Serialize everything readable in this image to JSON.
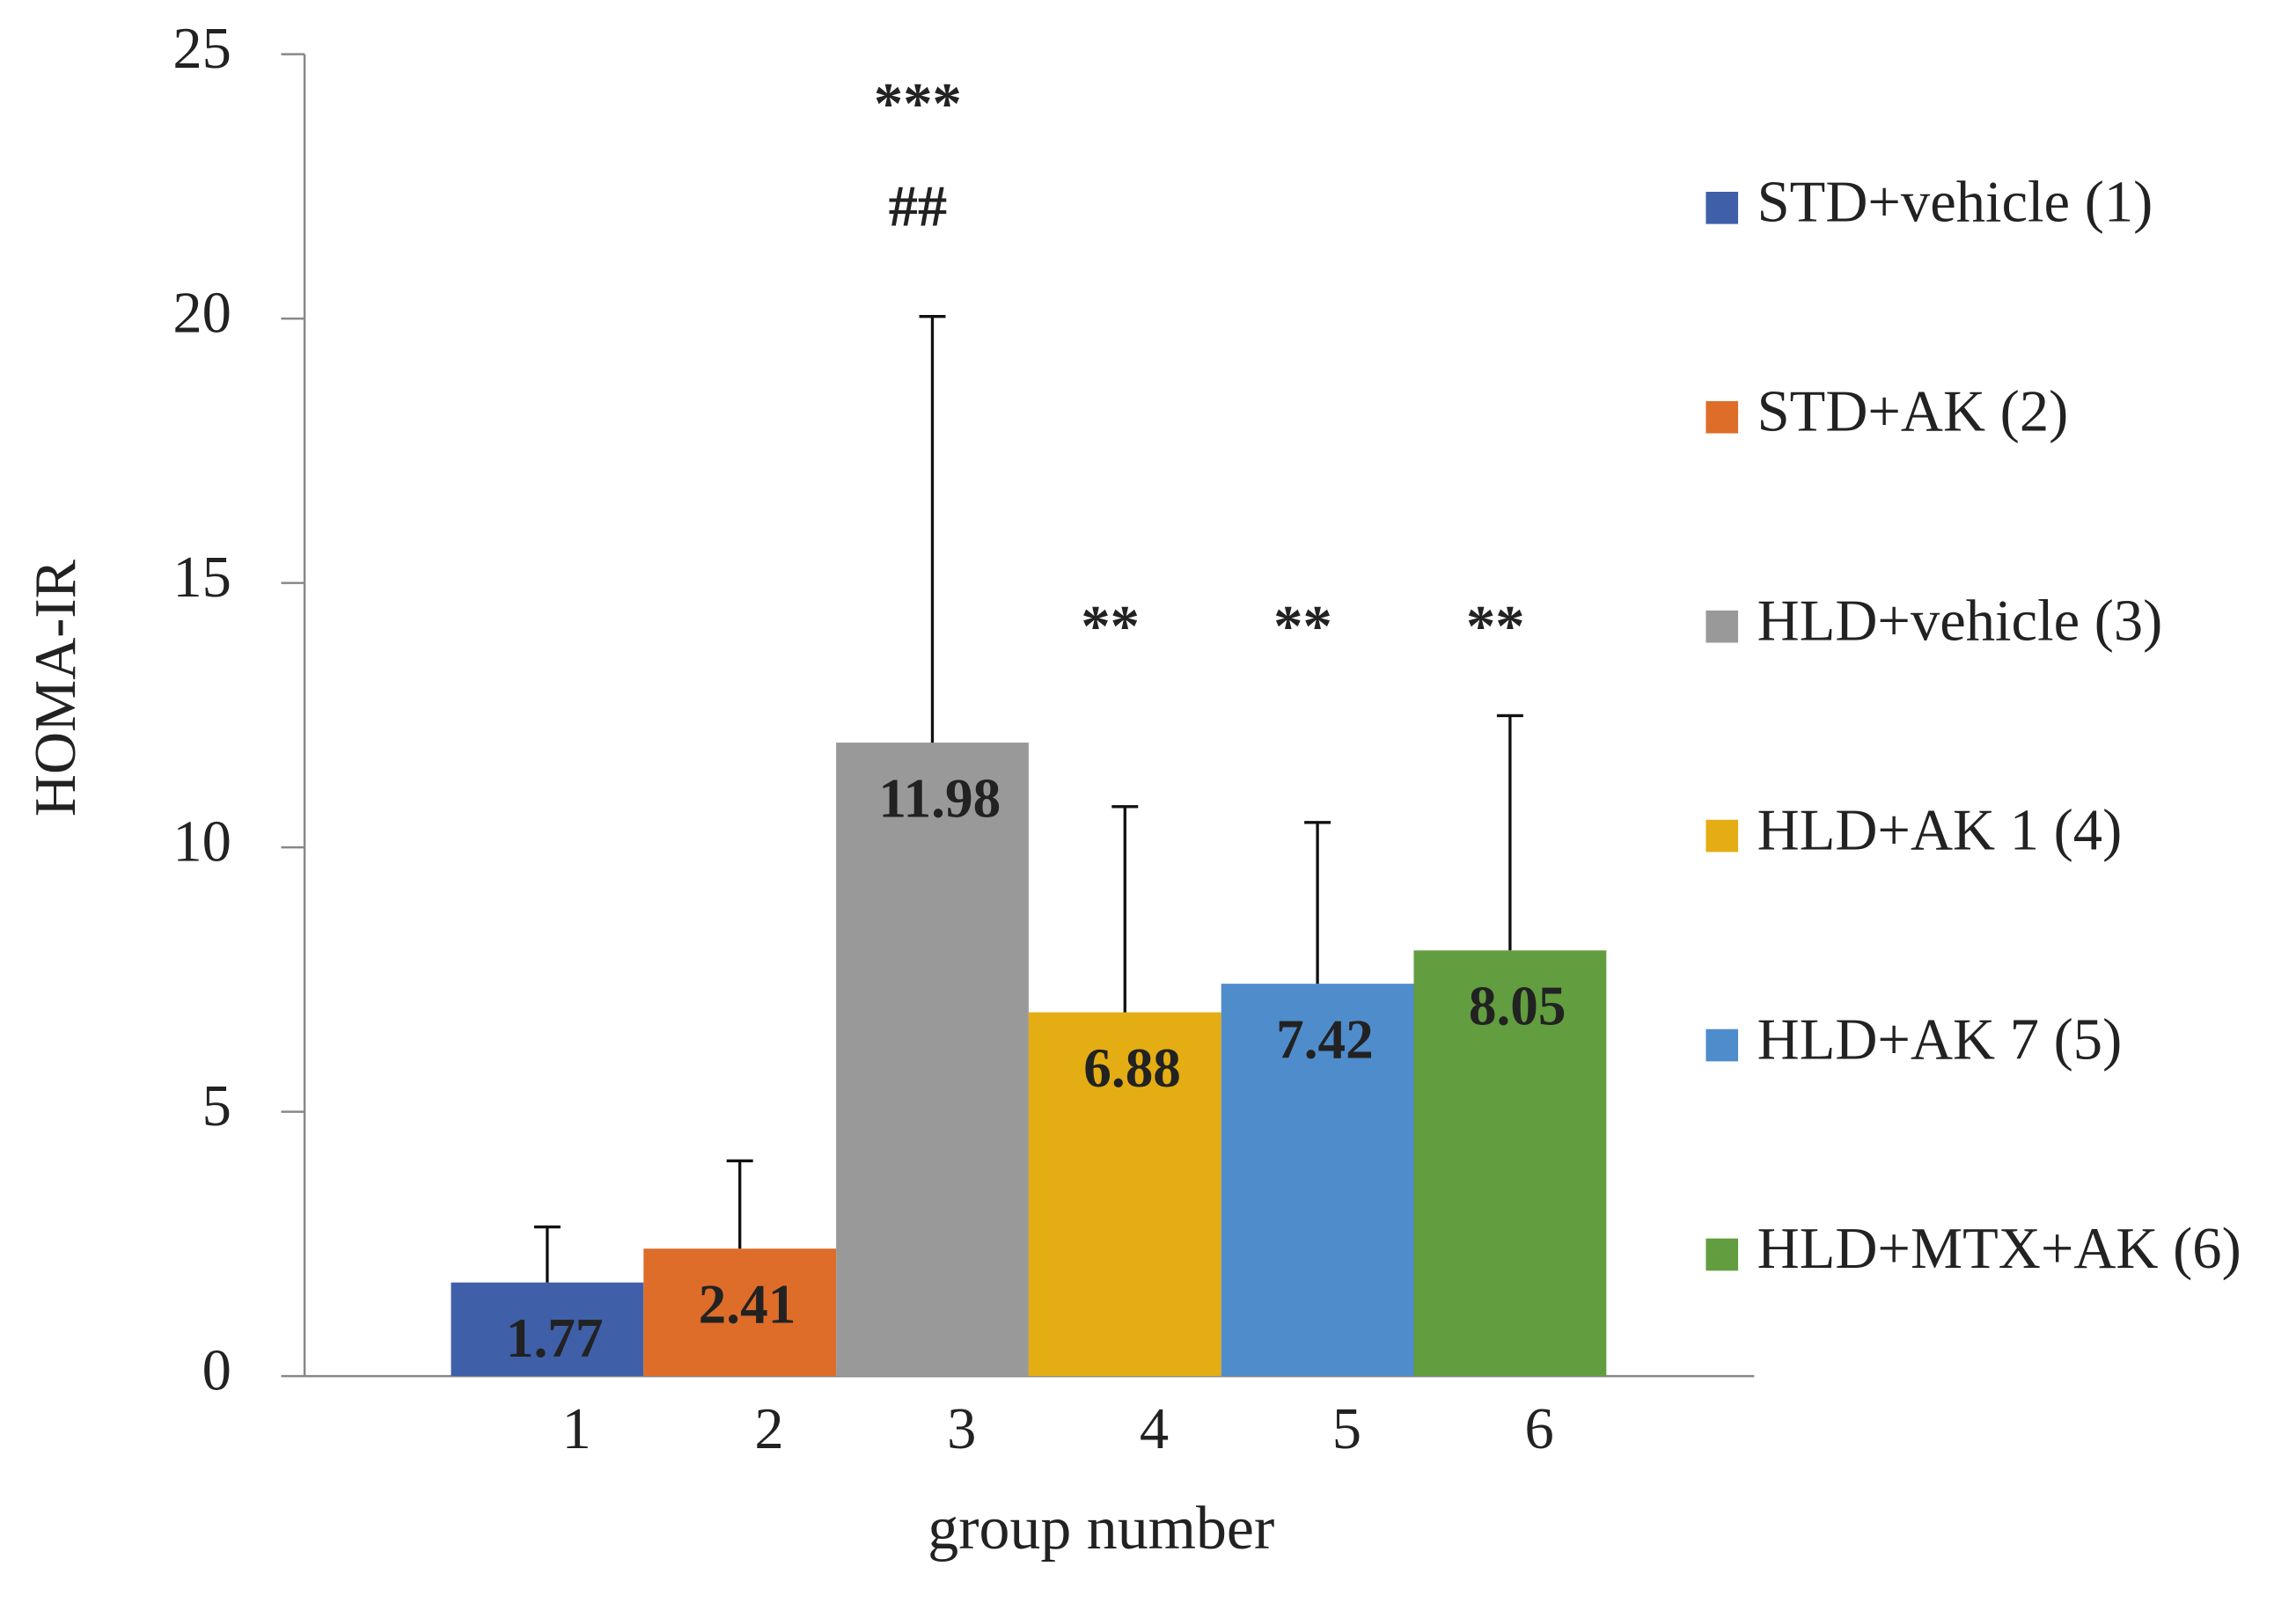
{
  "chart_data": {
    "type": "bar",
    "y_label": "HOMA-IR",
    "x_label": "group number",
    "categories": [
      "1",
      "2",
      "3",
      "4",
      "5",
      "6"
    ],
    "values": [
      1.77,
      2.41,
      11.98,
      6.88,
      7.42,
      8.05
    ],
    "errors": [
      1.05,
      1.66,
      8.06,
      3.89,
      3.05,
      4.44
    ],
    "colors": [
      "#3f5fa8",
      "#de6d2a",
      "#999999",
      "#e5ad14",
      "#4f8ccb",
      "#629d3f"
    ],
    "legend": [
      "STD+vehicle (1)",
      "STD+AK (2)",
      "HLD+vehicle (3)",
      "HLD+AK 1 (4)",
      "HLD+AK 7 (5)",
      "HLD+MTX+AK (6)"
    ],
    "annotations": [
      {
        "text": "***",
        "category": "3"
      },
      {
        "text": "##",
        "category": "3"
      },
      {
        "text": "**",
        "category": "4"
      },
      {
        "text": "**",
        "category": "5"
      },
      {
        "text": "**",
        "category": "6"
      }
    ],
    "ylim": [
      0,
      25
    ],
    "yticks": [
      0,
      5,
      10,
      15,
      20,
      25
    ]
  }
}
